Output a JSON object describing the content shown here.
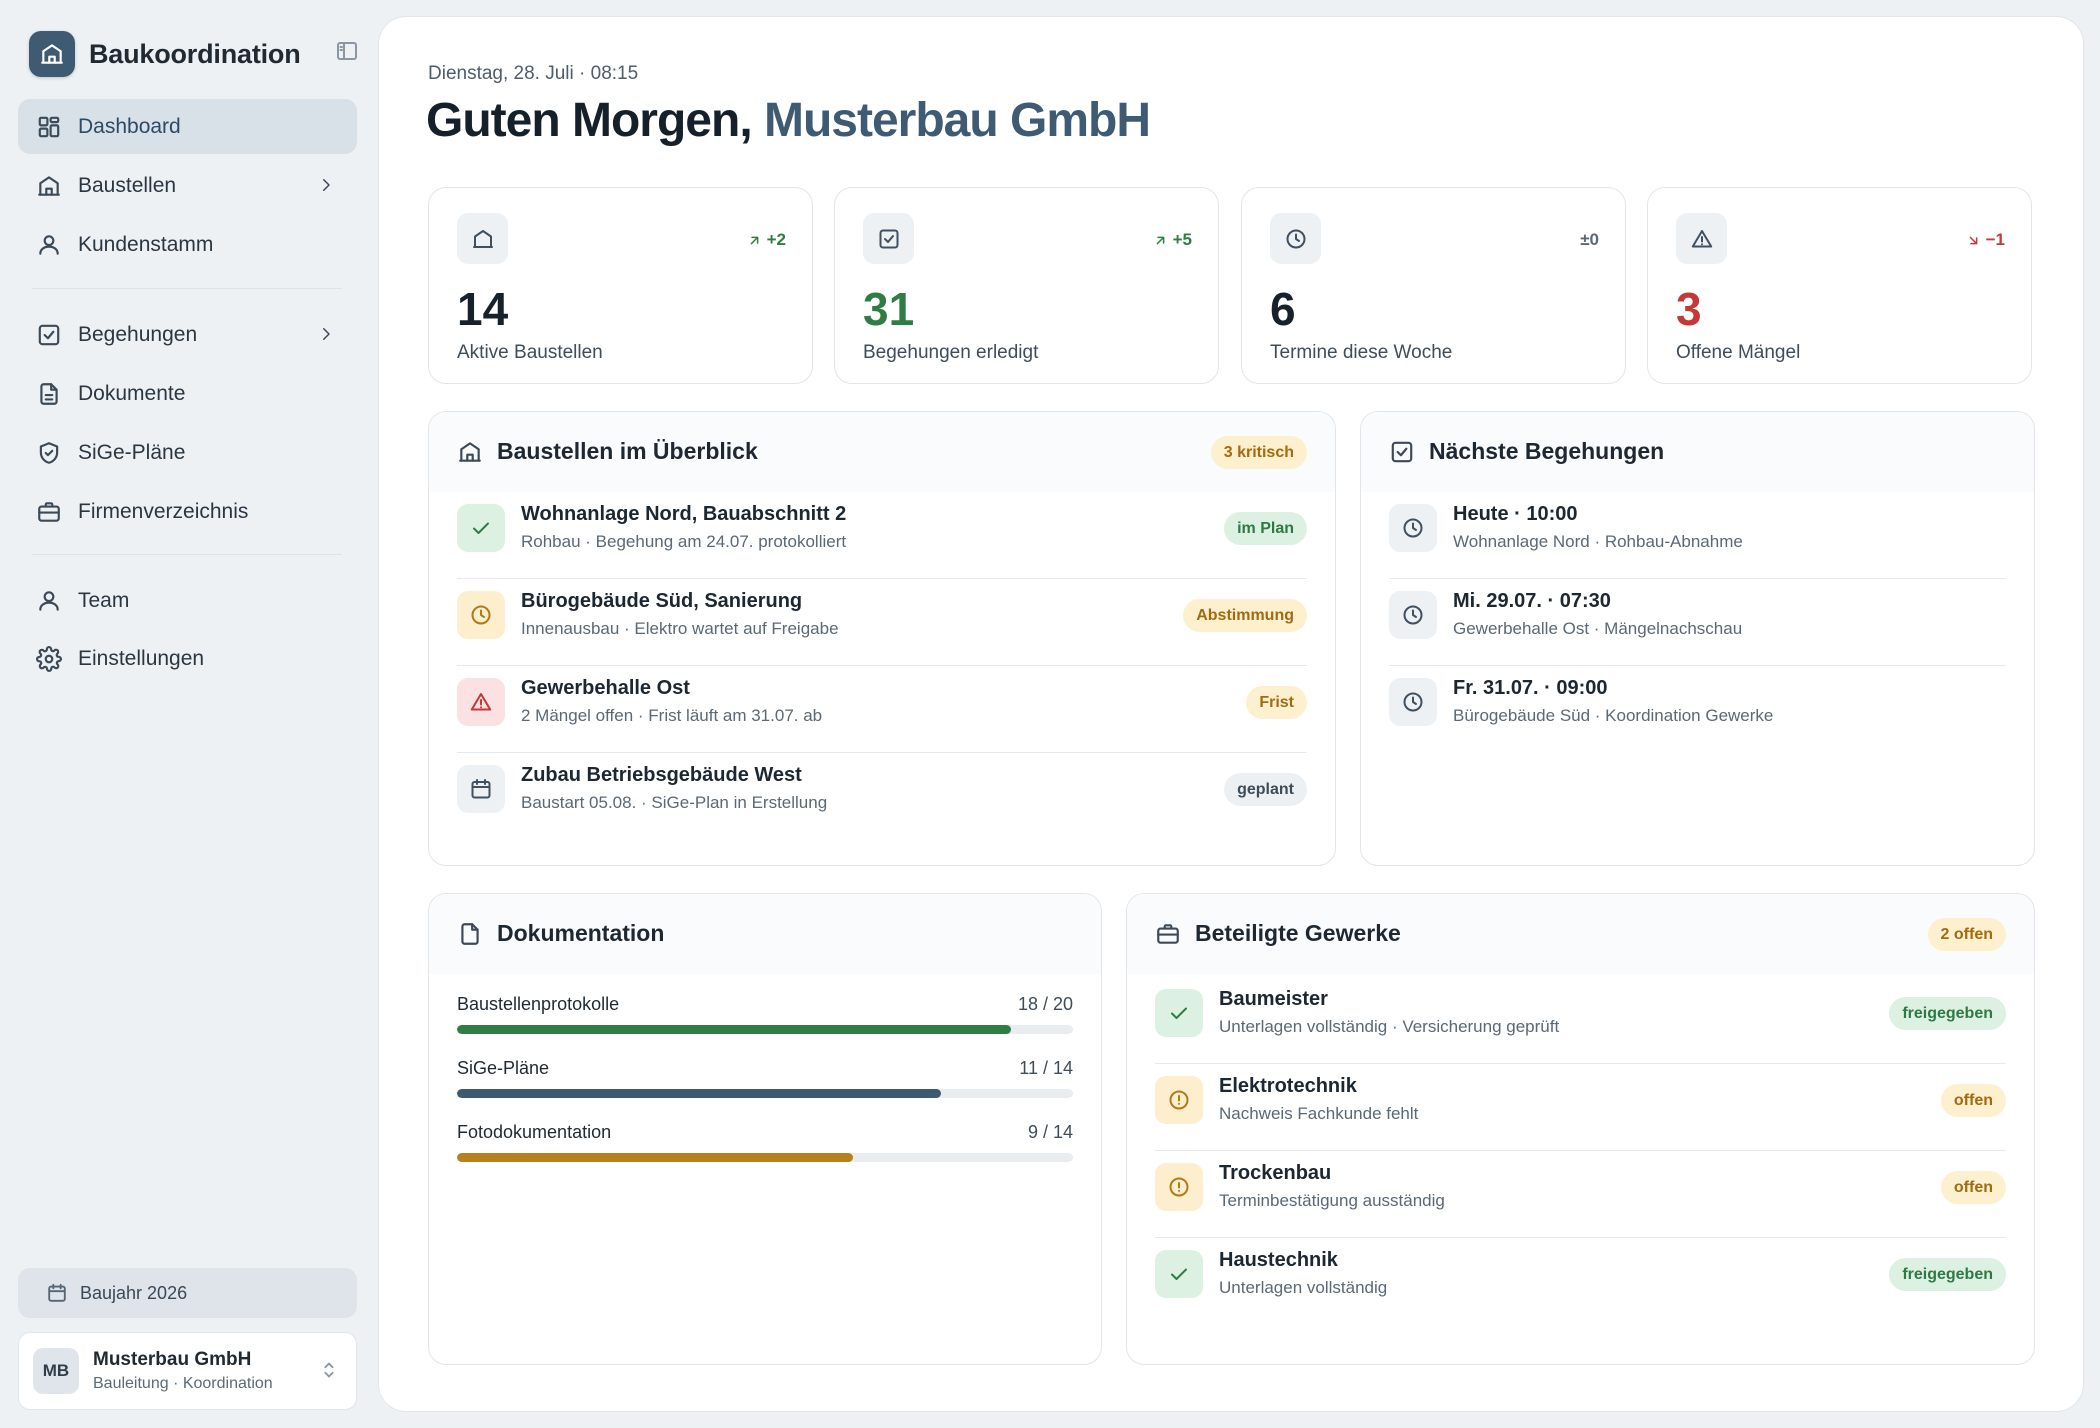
{
  "sidebar": {
    "brand": "Baukoordination",
    "nav": [
      {
        "label": "Dashboard",
        "icon": "dashboard-icon",
        "active": true
      },
      {
        "label": "Baustellen",
        "icon": "building-icon",
        "chevron": true
      },
      {
        "label": "Kundenstamm",
        "icon": "user-icon"
      },
      {
        "label": "Begehungen",
        "icon": "checklist-icon",
        "chevron": true
      },
      {
        "label": "Dokumente",
        "icon": "document-icon"
      },
      {
        "label": "SiGe-Pläne",
        "icon": "shield-icon"
      },
      {
        "label": "Firmenverzeichnis",
        "icon": "briefcase-icon"
      },
      {
        "label": "Team",
        "icon": "user-icon"
      },
      {
        "label": "Einstellungen",
        "icon": "gear-icon"
      }
    ],
    "year": "Baujahr 2026",
    "user": {
      "initials": "MB",
      "name": "Musterbau GmbH",
      "role": "Bauleitung · Koordination"
    }
  },
  "header": {
    "date": "Dienstag, 28. Juli · 08:15",
    "greeting": "Guten Morgen,",
    "company": "Musterbau GmbH"
  },
  "stats": [
    {
      "value": "14",
      "label": "Aktive Baustellen",
      "trend": "+2",
      "direction": "up",
      "icon": "building-icon"
    },
    {
      "value": "31",
      "label": "Begehungen erledigt",
      "trend": "+5",
      "direction": "up",
      "icon": "checklist-icon"
    },
    {
      "value": "6",
      "label": "Termine diese Woche",
      "trend": "±0",
      "direction": "flat",
      "icon": "clock-icon"
    },
    {
      "value": "3",
      "label": "Offene Mängel",
      "trend": "−1",
      "direction": "down",
      "icon": "warning-icon"
    }
  ],
  "sites": {
    "title": "Baustellen im Überblick",
    "badge": "3 kritisch",
    "rows": [
      {
        "title": "Wohnanlage Nord, Bauabschnitt 2",
        "sub": "Rohbau · Begehung am 24.07. protokolliert",
        "status": "im Plan",
        "tone": "green",
        "icon": "check-icon"
      },
      {
        "title": "Bürogebäude Süd, Sanierung",
        "sub": "Innenausbau · Elektro wartet auf Freigabe",
        "status": "Abstimmung",
        "tone": "amber",
        "icon": "clock-icon"
      },
      {
        "title": "Gewerbehalle Ost",
        "sub": "2 Mängel offen · Frist läuft am 31.07. ab",
        "status": "Frist",
        "tone": "red",
        "icon": "warning-icon"
      },
      {
        "title": "Zubau Betriebsgebäude West",
        "sub": "Baustart 05.08. · SiGe-Plan in Erstellung",
        "status": "geplant",
        "tone": "gray",
        "icon": "calendar-icon"
      }
    ]
  },
  "inspections": {
    "title": "Nächste Begehungen",
    "rows": [
      {
        "title": "Heute · 10:00",
        "sub": "Wohnanlage Nord · Rohbau-Abnahme"
      },
      {
        "title": "Mi. 29.07. · 07:30",
        "sub": "Gewerbehalle Ost · Mängelnachschau"
      },
      {
        "title": "Fr. 31.07. · 09:00",
        "sub": "Bürogebäude Süd · Koordination Gewerke"
      }
    ]
  },
  "docs": {
    "title": "Dokumentation",
    "rows": [
      {
        "label": "Baustellenprotokolle",
        "value": "18 / 20",
        "progress": 0.9,
        "color": "#2e7d43"
      },
      {
        "label": "SiGe-Pläne",
        "value": "11 / 14",
        "progress": 0.786,
        "color": "#3d5a73"
      },
      {
        "label": "Fotodokumentation",
        "value": "9 / 14",
        "progress": 0.643,
        "color": "#b7821d"
      }
    ]
  },
  "trades": {
    "title": "Beteiligte Gewerke",
    "badge": "2 offen",
    "rows": [
      {
        "title": "Baumeister",
        "sub": "Unterlagen vollständig · Versicherung geprüft",
        "status": "freigegeben",
        "tone": "green",
        "icon": "check-icon"
      },
      {
        "title": "Elektrotechnik",
        "sub": "Nachweis Fachkunde fehlt",
        "status": "offen",
        "tone": "amber",
        "icon": "alert-circle-icon"
      },
      {
        "title": "Trockenbau",
        "sub": "Terminbestätigung ausständig",
        "status": "offen",
        "tone": "amber",
        "icon": "alert-circle-icon"
      },
      {
        "title": "Haustechnik",
        "sub": "Unterlagen vollständig",
        "status": "freigegeben",
        "tone": "green",
        "icon": "check-icon"
      }
    ]
  }
}
